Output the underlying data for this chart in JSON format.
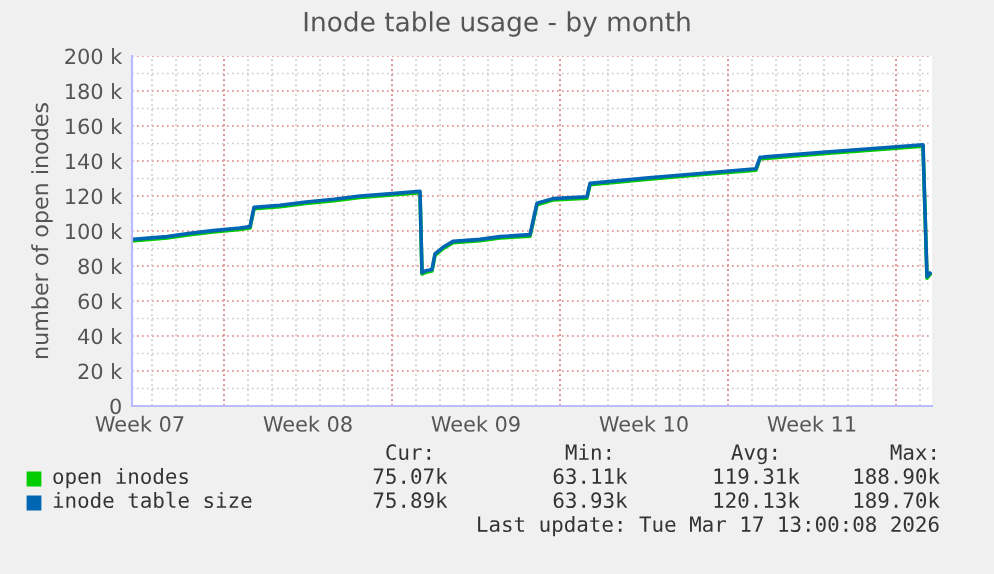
{
  "chart_data": {
    "type": "line",
    "title": "Inode table usage - by month",
    "ylabel": "number of open inodes",
    "x": [
      "2026-02-12T05:00",
      "2026-02-13T15:00",
      "2026-02-14T14:00",
      "2026-02-15T13:00",
      "2026-02-16T16:00",
      "2026-02-17T02:00",
      "2026-02-17T06:00",
      "2026-02-18T08:00",
      "2026-02-19T10:00",
      "2026-02-20T14:00",
      "2026-02-21T16:00",
      "2026-02-22T18:00",
      "2026-02-24T04:00",
      "2026-02-24T06:00",
      "2026-02-24T10:00",
      "2026-02-24T16:00",
      "2026-02-24T19:00",
      "2026-02-25T03:00",
      "2026-02-25T13:00",
      "2026-02-26T16:00",
      "2026-02-27T12:00",
      "2026-02-28T18:00",
      "2026-03-01T01:00",
      "2026-03-01T17:00",
      "2026-03-03T03:00",
      "2026-03-03T06:00",
      "2026-03-05T14:00",
      "2026-03-07T20:00",
      "2026-03-10T04:00",
      "2026-03-10T08:00",
      "2026-03-13T02:00",
      "2026-03-15T08:00",
      "2026-03-17T03:00",
      "2026-03-17T07:00",
      "2026-03-17T10:00"
    ],
    "series": [
      {
        "name": "open inodes",
        "color": "#00cc00",
        "values": [
          94400,
          96000,
          97900,
          99400,
          100900,
          101700,
          112700,
          113900,
          115800,
          117300,
          119200,
          120300,
          121900,
          75400,
          76500,
          77200,
          86100,
          89900,
          93300,
          94400,
          96000,
          97100,
          115000,
          117700,
          118800,
          126400,
          129500,
          132100,
          134800,
          141300,
          144300,
          146600,
          148500,
          73100,
          75070
        ]
      },
      {
        "name": "inode table size",
        "color": "#0066b3",
        "values": [
          95200,
          96800,
          98700,
          100200,
          101700,
          102500,
          113500,
          114700,
          116600,
          118100,
          120000,
          121100,
          122700,
          76200,
          77300,
          78000,
          86900,
          90700,
          94100,
          95200,
          96800,
          97900,
          115800,
          118500,
          119600,
          127200,
          130300,
          132900,
          135600,
          142100,
          145100,
          147400,
          149300,
          73900,
          75890
        ]
      }
    ],
    "xlim": [
      "2026-02-12T04:00",
      "2026-03-17T12:00"
    ],
    "xticks": [
      {
        "value": "2026-02-12T12:00",
        "label": "Week 07"
      },
      {
        "value": "2026-02-16T00:00",
        "label": null
      },
      {
        "value": "2026-02-19T12:00",
        "label": "Week 08"
      },
      {
        "value": "2026-02-23T00:00",
        "label": null
      },
      {
        "value": "2026-02-26T12:00",
        "label": "Week 09"
      },
      {
        "value": "2026-03-02T00:00",
        "label": null
      },
      {
        "value": "2026-03-05T12:00",
        "label": "Week 10"
      },
      {
        "value": "2026-03-09T00:00",
        "label": null
      },
      {
        "value": "2026-03-12T12:00",
        "label": "Week 11"
      },
      {
        "value": "2026-03-16T00:00",
        "label": null
      }
    ],
    "ylim": [
      0,
      200000
    ],
    "yticks": [
      0,
      {
        "value": 20000,
        "label": "20 k"
      },
      {
        "value": 40000,
        "label": "40 k"
      },
      {
        "value": 60000,
        "label": "60 k"
      },
      {
        "value": 80000,
        "label": "80 k"
      },
      {
        "value": 100000,
        "label": "100 k"
      },
      {
        "value": 120000,
        "label": "120 k"
      },
      {
        "value": 140000,
        "label": "140 k"
      },
      {
        "value": 160000,
        "label": "160 k"
      },
      {
        "value": 180000,
        "label": "180 k"
      },
      {
        "value": 200000,
        "label": "200 k"
      }
    ],
    "grid": true,
    "legend": "bottom left",
    "annotations": [
      "Cur:",
      "Min:",
      "Avg:",
      "Max:",
      "75.07k",
      "63.11k",
      "119.31k",
      "188.90k",
      "75.89k",
      "63.93k",
      "120.13k",
      "189.70k",
      "Last update: Tue Mar 17 13:00:08 2026"
    ]
  }
}
